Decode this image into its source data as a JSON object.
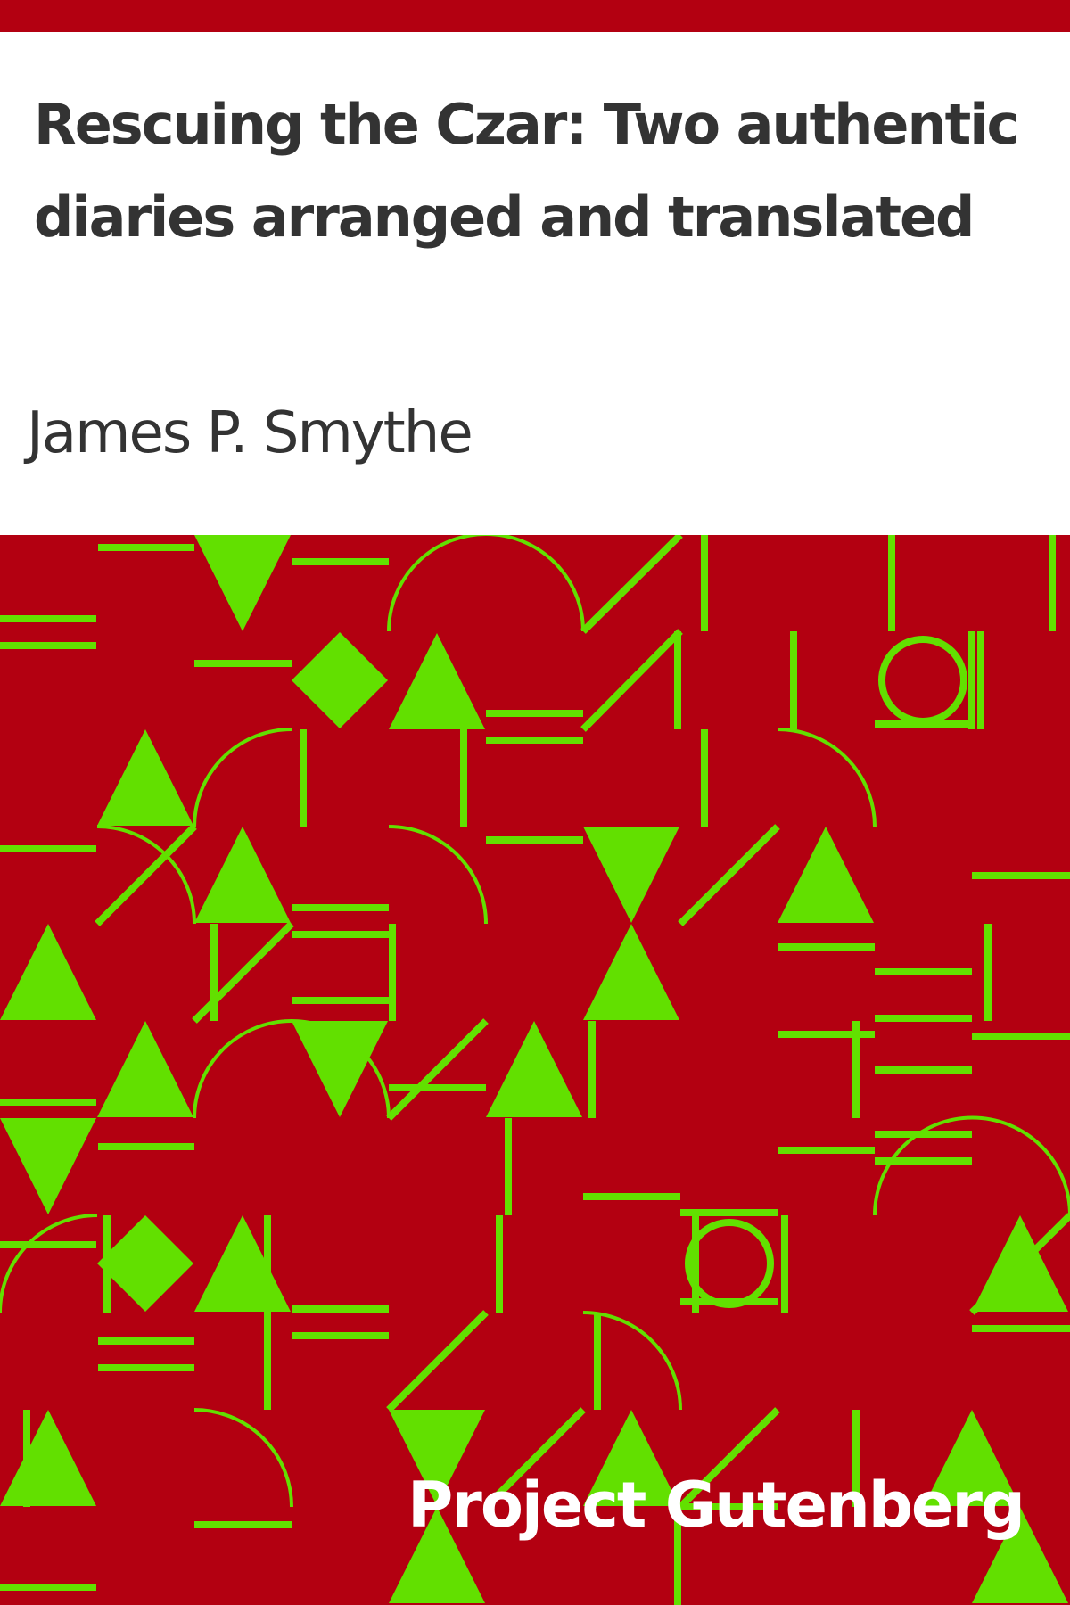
{
  "book": {
    "title": "Rescuing the Czar: Two authentic diaries arranged and translated",
    "author": "James P. Smythe",
    "publisher": "Project Gutenberg"
  },
  "colors": {
    "background": "#ffffff",
    "accent_red": "#b30011",
    "pattern_green": "#62e000",
    "text_dark": "#333333",
    "text_light": "#ffffff"
  }
}
